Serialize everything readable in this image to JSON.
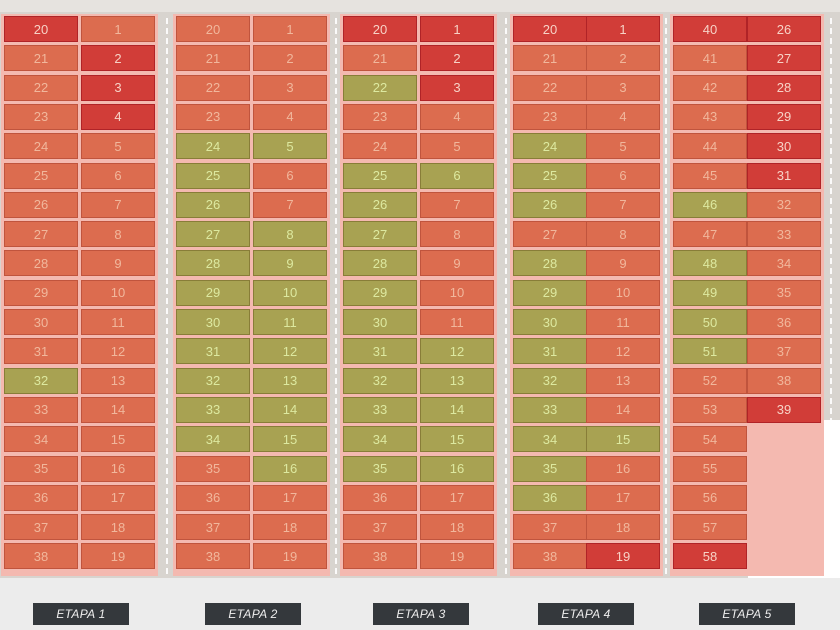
{
  "colors": {
    "available": "#dc6c4f",
    "sold": "#d13d38",
    "reserved": "#a8a252",
    "ground": "#d8d4cf",
    "walkway": "#f4b9b0",
    "footer": "#ececec",
    "label_bg": "#34383c"
  },
  "etapas": [
    {
      "label": "ETAPA 1",
      "left": {
        "start": 20,
        "end": 38
      },
      "right": {
        "start": 1,
        "end": 19
      },
      "sold": [
        20,
        2,
        3,
        4
      ],
      "reserved": [
        32
      ]
    },
    {
      "label": "ETAPA 2",
      "left": {
        "start": 20,
        "end": 38
      },
      "right": {
        "start": 1,
        "end": 19
      },
      "sold": [],
      "reserved": [
        24,
        25,
        26,
        27,
        28,
        29,
        30,
        31,
        32,
        33,
        34,
        5,
        8,
        9,
        10,
        11,
        12,
        13,
        14,
        15,
        16
      ]
    },
    {
      "label": "ETAPA 3",
      "left": {
        "start": 20,
        "end": 38
      },
      "right": {
        "start": 1,
        "end": 19
      },
      "sold": [
        20,
        1,
        2,
        3
      ],
      "reserved": [
        22,
        25,
        26,
        27,
        28,
        29,
        30,
        31,
        32,
        33,
        34,
        35,
        6,
        12,
        13,
        14,
        15,
        16
      ]
    },
    {
      "label": "ETAPA 4",
      "left": {
        "start": 20,
        "end": 38
      },
      "right": {
        "start": 1,
        "end": 19
      },
      "sold": [
        20,
        1,
        19
      ],
      "reserved": [
        24,
        25,
        26,
        28,
        29,
        30,
        31,
        32,
        33,
        34,
        35,
        36,
        15
      ]
    },
    {
      "label": "ETAPA 5",
      "left": {
        "start": 40,
        "end": 58
      },
      "right": {
        "start": 26,
        "end": 39
      },
      "sold": [
        40,
        26,
        27,
        28,
        29,
        30,
        31,
        39,
        58
      ],
      "reserved": [
        46,
        48,
        49,
        50,
        51
      ]
    }
  ]
}
